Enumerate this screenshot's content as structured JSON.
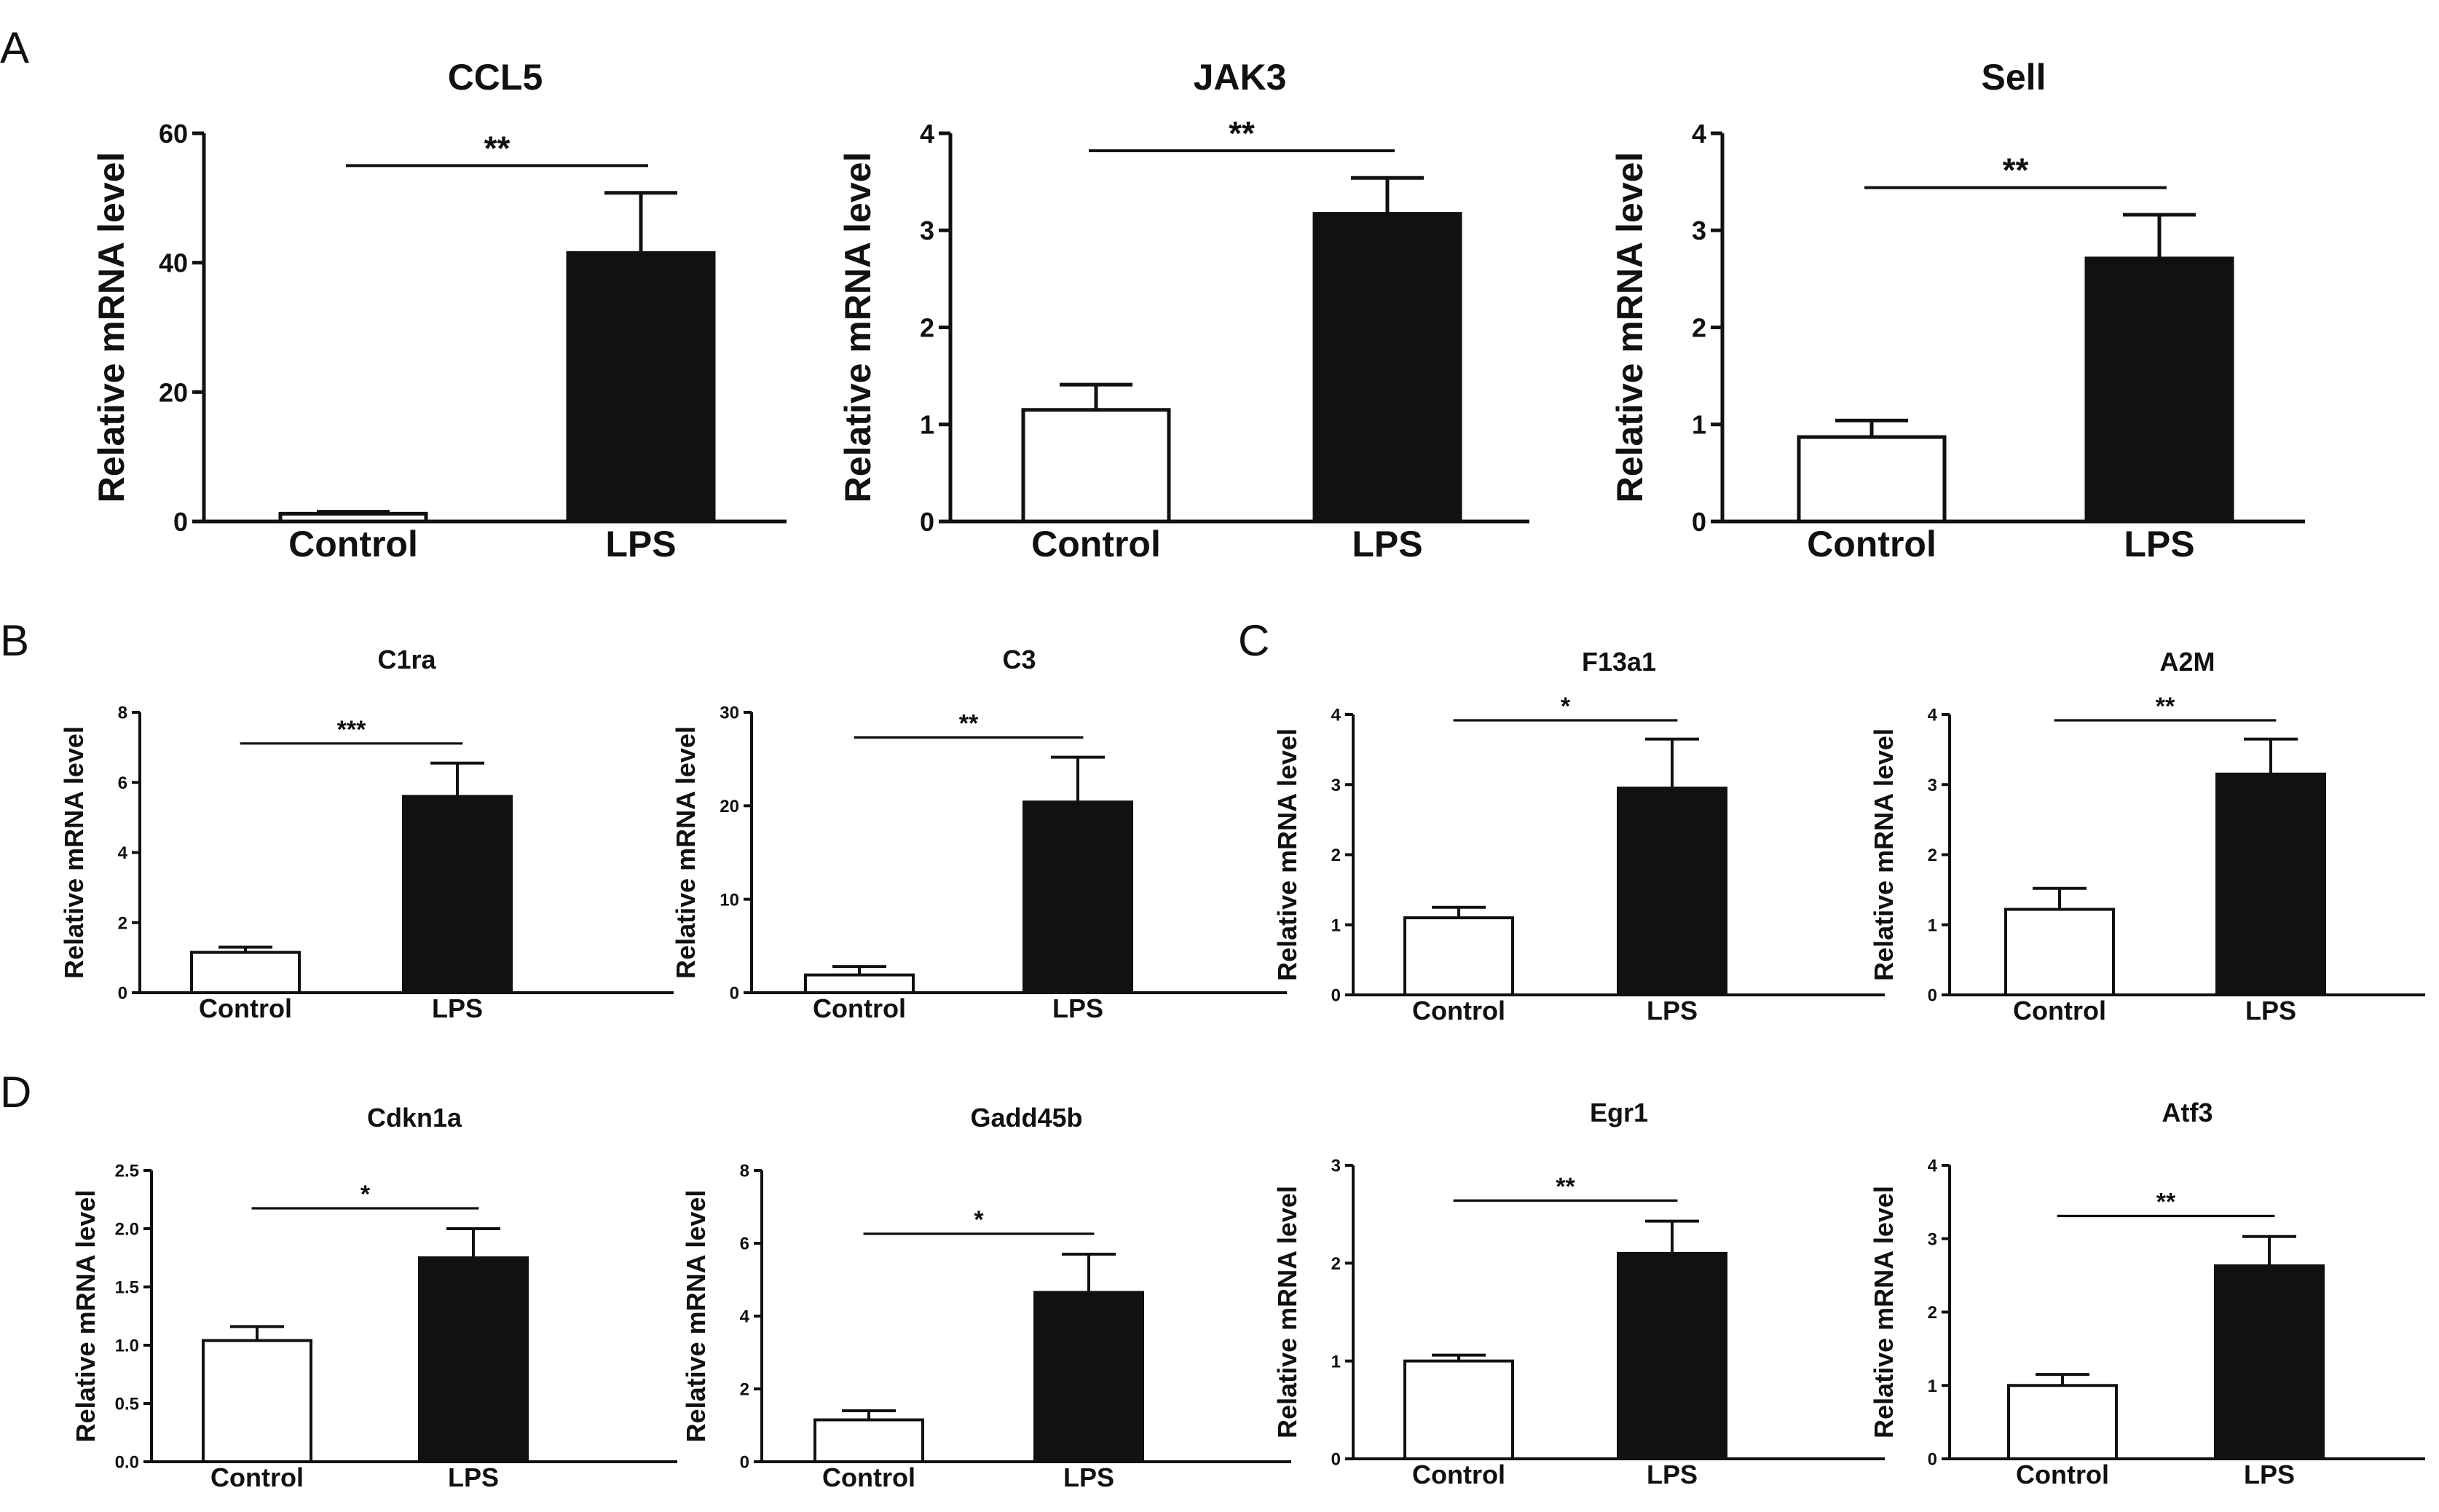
{
  "panels": [
    {
      "letter": "A"
    },
    {
      "letter": "B"
    },
    {
      "letter": "C"
    },
    {
      "letter": "D"
    }
  ],
  "chart_data": [
    {
      "type": "bar",
      "panel": "A",
      "title": "CCL5",
      "ylabel": "Relative mRNA level",
      "xlabel": "",
      "categories": [
        "Control",
        "LPS"
      ],
      "values": [
        1.2,
        41.5
      ],
      "errors": [
        0.3,
        9.3
      ],
      "ylim": [
        0,
        60
      ],
      "yticks": [
        "0",
        "20",
        "40",
        "60"
      ],
      "significance": "**",
      "bar_fills": [
        "#ffffff",
        "#111111"
      ],
      "grid": false
    },
    {
      "type": "bar",
      "panel": "A",
      "title": "JAK3",
      "ylabel": "Relative mRNA level",
      "xlabel": "",
      "categories": [
        "Control",
        "LPS"
      ],
      "values": [
        1.15,
        3.17
      ],
      "errors": [
        0.26,
        0.37
      ],
      "ylim": [
        0,
        4
      ],
      "yticks": [
        "0",
        "1",
        "2",
        "3",
        "4"
      ],
      "significance": "**",
      "bar_fills": [
        "#ffffff",
        "#111111"
      ],
      "grid": false
    },
    {
      "type": "bar",
      "panel": "A",
      "title": "Sell",
      "ylabel": "Relative mRNA level",
      "xlabel": "",
      "categories": [
        "Control",
        "LPS"
      ],
      "values": [
        0.87,
        2.71
      ],
      "errors": [
        0.17,
        0.45
      ],
      "ylim": [
        0,
        4
      ],
      "yticks": [
        "0",
        "1",
        "2",
        "3",
        "4"
      ],
      "significance": "**",
      "bar_fills": [
        "#ffffff",
        "#111111"
      ],
      "grid": false
    },
    {
      "type": "bar",
      "panel": "B",
      "title": "C1ra",
      "ylabel": "Relative mRNA level",
      "xlabel": "",
      "categories": [
        "Control",
        "LPS"
      ],
      "values": [
        1.15,
        5.6
      ],
      "errors": [
        0.15,
        0.95
      ],
      "ylim": [
        0,
        8
      ],
      "yticks": [
        "0",
        "2",
        "4",
        "6",
        "8"
      ],
      "significance": "***",
      "bar_fills": [
        "#ffffff",
        "#111111"
      ],
      "grid": false
    },
    {
      "type": "bar",
      "panel": "B",
      "title": "C3",
      "ylabel": "Relative mRNA level",
      "xlabel": "",
      "categories": [
        "Control",
        "LPS"
      ],
      "values": [
        1.9,
        20.4
      ],
      "errors": [
        0.9,
        4.8
      ],
      "ylim": [
        0,
        30
      ],
      "yticks": [
        "0",
        "10",
        "20",
        "30"
      ],
      "significance": "**",
      "bar_fills": [
        "#ffffff",
        "#111111"
      ],
      "grid": false
    },
    {
      "type": "bar",
      "panel": "C",
      "title": "F13a1",
      "ylabel": "Relative mRNA level",
      "xlabel": "",
      "categories": [
        "Control",
        "LPS"
      ],
      "values": [
        1.1,
        2.95
      ],
      "errors": [
        0.15,
        0.7
      ],
      "ylim": [
        0,
        4
      ],
      "yticks": [
        "0",
        "1",
        "2",
        "3",
        "4"
      ],
      "significance": "*",
      "bar_fills": [
        "#ffffff",
        "#111111"
      ],
      "grid": false
    },
    {
      "type": "bar",
      "panel": "C",
      "title": "A2M",
      "ylabel": "Relative mRNA level",
      "xlabel": "",
      "categories": [
        "Control",
        "LPS"
      ],
      "values": [
        1.22,
        3.15
      ],
      "errors": [
        0.3,
        0.5
      ],
      "ylim": [
        0,
        4
      ],
      "yticks": [
        "0",
        "1",
        "2",
        "3",
        "4"
      ],
      "significance": "**",
      "bar_fills": [
        "#ffffff",
        "#111111"
      ],
      "grid": false
    },
    {
      "type": "bar",
      "panel": "D",
      "title": "Cdkn1a",
      "ylabel": "Relative mRNA level",
      "xlabel": "",
      "categories": [
        "Control",
        "LPS"
      ],
      "values": [
        1.04,
        1.75
      ],
      "errors": [
        0.12,
        0.25
      ],
      "ylim": [
        0,
        2.5
      ],
      "yticks": [
        "0.0",
        "0.5",
        "1.0",
        "1.5",
        "2.0",
        "2.5"
      ],
      "significance": "*",
      "bar_fills": [
        "#ffffff",
        "#111111"
      ],
      "grid": false
    },
    {
      "type": "bar",
      "panel": "D",
      "title": "Gadd45b",
      "ylabel": "Relative mRNA level",
      "xlabel": "",
      "categories": [
        "Control",
        "LPS"
      ],
      "values": [
        1.15,
        4.65
      ],
      "errors": [
        0.25,
        1.05
      ],
      "ylim": [
        0,
        8
      ],
      "yticks": [
        "0",
        "2",
        "4",
        "6",
        "8"
      ],
      "significance": "*",
      "bar_fills": [
        "#ffffff",
        "#111111"
      ],
      "grid": false
    },
    {
      "type": "bar",
      "panel": "D",
      "title": "Egr1",
      "ylabel": "Relative mRNA level",
      "xlabel": "",
      "categories": [
        "Control",
        "LPS"
      ],
      "values": [
        1.0,
        2.1
      ],
      "errors": [
        0.06,
        0.33
      ],
      "ylim": [
        0,
        3
      ],
      "yticks": [
        "0",
        "1",
        "2",
        "3"
      ],
      "significance": "**",
      "bar_fills": [
        "#ffffff",
        "#111111"
      ],
      "grid": false
    },
    {
      "type": "bar",
      "panel": "D",
      "title": "Atf3",
      "ylabel": "Relative mRNA level",
      "xlabel": "",
      "categories": [
        "Control",
        "LPS"
      ],
      "values": [
        1.0,
        2.63
      ],
      "errors": [
        0.15,
        0.4
      ],
      "ylim": [
        0,
        4
      ],
      "yticks": [
        "0",
        "1",
        "2",
        "3",
        "4"
      ],
      "significance": "**",
      "bar_fills": [
        "#ffffff",
        "#111111"
      ],
      "grid": false
    }
  ]
}
